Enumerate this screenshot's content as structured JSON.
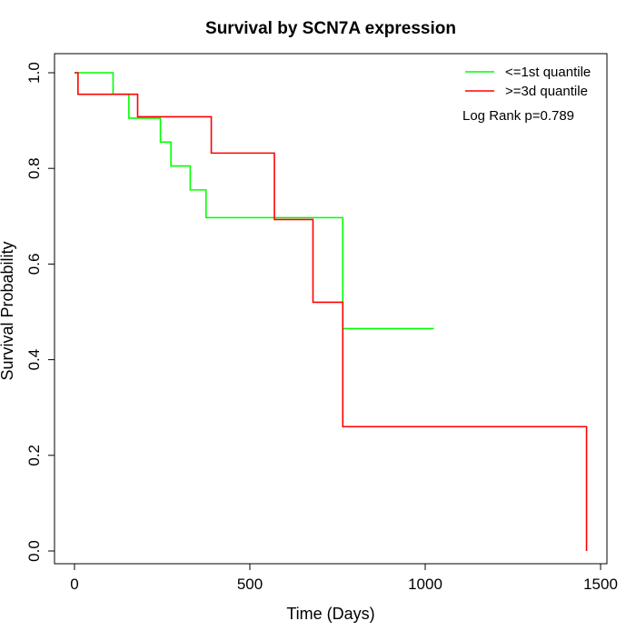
{
  "chart_data": {
    "type": "line",
    "title": "Survival by SCN7A expression",
    "xlabel": "Time (Days)",
    "ylabel": "Survival Probability",
    "xlim": [
      0,
      1500
    ],
    "ylim": [
      0,
      1.0
    ],
    "x_ticks": [
      "0",
      "500",
      "1000",
      "1500"
    ],
    "y_ticks": [
      "0.0",
      "0.2",
      "0.4",
      "0.6",
      "0.8",
      "1.0"
    ],
    "legend_position": "top-right",
    "annotation": "Log Rank p=0.789",
    "series": [
      {
        "name": "<=1st quantile",
        "color": "#00ff00",
        "step": [
          [
            0,
            1.0
          ],
          [
            110,
            0.955
          ],
          [
            155,
            0.905
          ],
          [
            245,
            0.855
          ],
          [
            275,
            0.805
          ],
          [
            330,
            0.755
          ],
          [
            375,
            0.697
          ],
          [
            765,
            0.465
          ],
          [
            1025,
            0.465
          ]
        ]
      },
      {
        "name": ">=3d quantile",
        "color": "#ff0000",
        "step": [
          [
            0,
            1.0
          ],
          [
            10,
            0.955
          ],
          [
            180,
            0.908
          ],
          [
            390,
            0.832
          ],
          [
            570,
            0.693
          ],
          [
            680,
            0.52
          ],
          [
            765,
            0.26
          ],
          [
            1460,
            0.26
          ],
          [
            1460,
            0.0
          ]
        ]
      }
    ]
  }
}
